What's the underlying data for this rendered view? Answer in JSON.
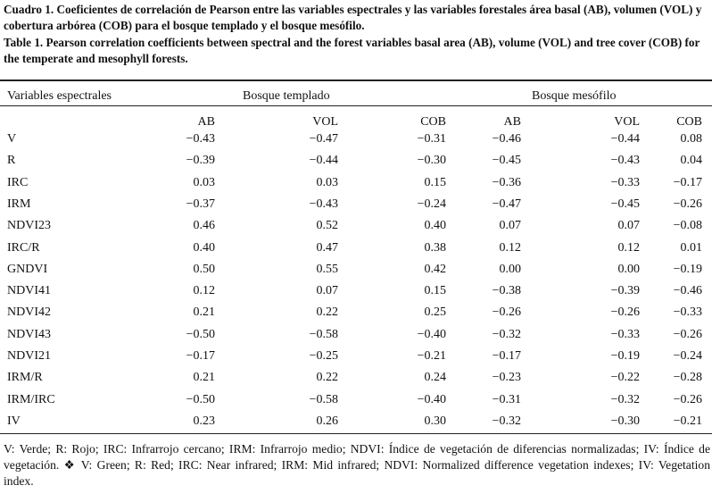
{
  "caption_es": "Cuadro 1. Coeficientes de correlación de Pearson entre las variables espectrales y las variables forestales área basal (AB), volumen (VOL) y cobertura arbórea (COB) para el bosque templado y el bosque mesófilo.",
  "caption_en": "Table 1. Pearson correlation coefficients between spectral and the forest variables basal area (AB), volume (VOL) and tree cover (COB) for the temperate and mesophyll forests.",
  "table": {
    "variable_header": "Variables espectrales",
    "group_headers": [
      "Bosque templado",
      "Bosque mesófilo"
    ],
    "columns": [
      "AB",
      "VOL",
      "COB",
      "AB",
      "VOL",
      "COB"
    ],
    "rows": [
      {
        "label": "V",
        "values": [
          "−0.43",
          "−0.47",
          "−0.31",
          "−0.46",
          "−0.44",
          "0.08"
        ]
      },
      {
        "label": "R",
        "values": [
          "−0.39",
          "−0.44",
          "−0.30",
          "−0.45",
          "−0.43",
          "0.04"
        ]
      },
      {
        "label": "IRC",
        "values": [
          "0.03",
          "0.03",
          "0.15",
          "−0.36",
          "−0.33",
          "−0.17"
        ]
      },
      {
        "label": "IRM",
        "values": [
          "−0.37",
          "−0.43",
          "−0.24",
          "−0.47",
          "−0.45",
          "−0.26"
        ]
      },
      {
        "label": "NDVI23",
        "values": [
          "0.46",
          "0.52",
          "0.40",
          "0.07",
          "0.07",
          "−0.08"
        ]
      },
      {
        "label": "IRC/R",
        "values": [
          "0.40",
          "0.47",
          "0.38",
          "0.12",
          "0.12",
          "0.01"
        ]
      },
      {
        "label": "GNDVI",
        "values": [
          "0.50",
          "0.55",
          "0.42",
          "0.00",
          "0.00",
          "−0.19"
        ]
      },
      {
        "label": "NDVI41",
        "values": [
          "0.12",
          "0.07",
          "0.15",
          "−0.38",
          "−0.39",
          "−0.46"
        ]
      },
      {
        "label": "NDVI42",
        "values": [
          "0.21",
          "0.22",
          "0.25",
          "−0.26",
          "−0.26",
          "−0.33"
        ]
      },
      {
        "label": "NDVI43",
        "values": [
          "−0.50",
          "−0.58",
          "−0.40",
          "−0.32",
          "−0.33",
          "−0.26"
        ]
      },
      {
        "label": "NDVI21",
        "values": [
          "−0.17",
          "−0.25",
          "−0.21",
          "−0.17",
          "−0.19",
          "−0.24"
        ]
      },
      {
        "label": "IRM/R",
        "values": [
          "0.21",
          "0.22",
          "0.24",
          "−0.23",
          "−0.22",
          "−0.28"
        ]
      },
      {
        "label": "IRM/IRC",
        "values": [
          "−0.50",
          "−0.58",
          "−0.40",
          "−0.31",
          "−0.32",
          "−0.26"
        ]
      },
      {
        "label": "IV",
        "values": [
          "0.23",
          "0.26",
          "0.30",
          "−0.32",
          "−0.30",
          "−0.21"
        ]
      }
    ]
  },
  "footnote": "V: Verde; R: Rojo; IRC: Infrarrojo cercano; IRM: Infrarrojo medio; NDVI: Índice de vegetación de diferencias normalizadas; IV: Índice de vegetación. ❖ V: Green; R: Red; IRC: Near infrared; IRM: Mid infrared; NDVI: Normalized difference vegetation indexes; IV: Vegetation index."
}
